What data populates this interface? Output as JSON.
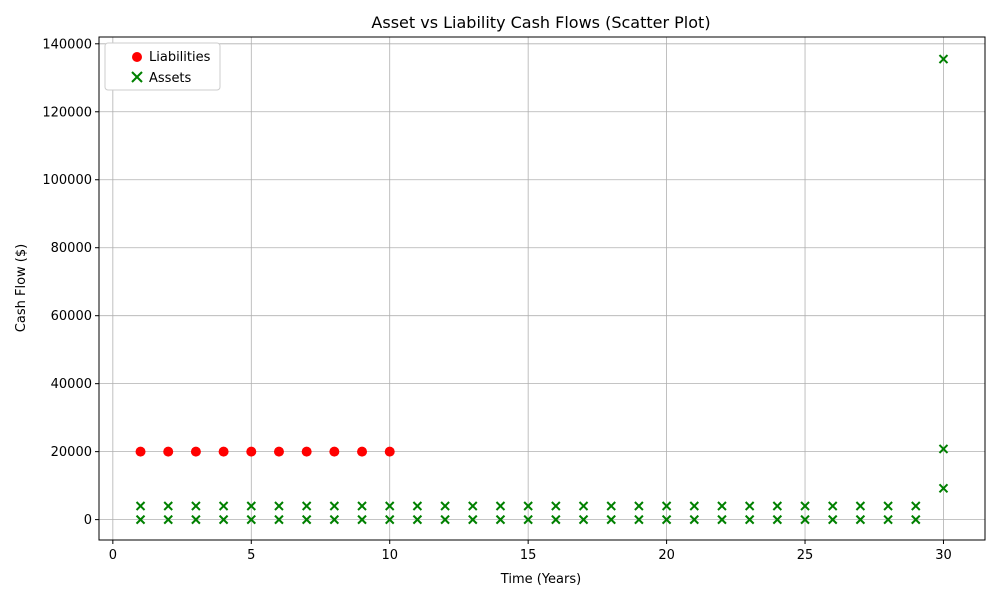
{
  "chart_data": {
    "type": "scatter",
    "title": "Asset vs Liability Cash Flows (Scatter Plot)",
    "xlabel": "Time (Years)",
    "ylabel": "Cash Flow ($)",
    "xlim": [
      -0.5,
      31.5
    ],
    "ylim": [
      -6000,
      142000
    ],
    "xticks": [
      0,
      5,
      10,
      15,
      20,
      25,
      30
    ],
    "yticks": [
      0,
      20000,
      40000,
      60000,
      80000,
      100000,
      120000,
      140000
    ],
    "grid": true,
    "legend_position": "top-left",
    "series": [
      {
        "name": "Liabilities",
        "marker": "circle",
        "color": "#ff0000",
        "points": [
          [
            1,
            20000
          ],
          [
            2,
            20000
          ],
          [
            3,
            20000
          ],
          [
            4,
            20000
          ],
          [
            5,
            20000
          ],
          [
            6,
            20000
          ],
          [
            7,
            20000
          ],
          [
            8,
            20000
          ],
          [
            9,
            20000
          ],
          [
            10,
            20000
          ]
        ]
      },
      {
        "name": "Assets",
        "marker": "x",
        "color": "#008000",
        "points": [
          [
            1,
            4000
          ],
          [
            1,
            0
          ],
          [
            2,
            4000
          ],
          [
            2,
            0
          ],
          [
            3,
            4000
          ],
          [
            3,
            0
          ],
          [
            4,
            4000
          ],
          [
            4,
            0
          ],
          [
            5,
            4000
          ],
          [
            5,
            0
          ],
          [
            6,
            4000
          ],
          [
            6,
            0
          ],
          [
            7,
            4000
          ],
          [
            7,
            0
          ],
          [
            8,
            4000
          ],
          [
            8,
            0
          ],
          [
            9,
            4000
          ],
          [
            9,
            0
          ],
          [
            10,
            4000
          ],
          [
            10,
            0
          ],
          [
            11,
            4000
          ],
          [
            11,
            0
          ],
          [
            12,
            4000
          ],
          [
            12,
            0
          ],
          [
            13,
            4000
          ],
          [
            13,
            0
          ],
          [
            14,
            4000
          ],
          [
            14,
            0
          ],
          [
            15,
            4000
          ],
          [
            15,
            0
          ],
          [
            16,
            4000
          ],
          [
            16,
            0
          ],
          [
            17,
            4000
          ],
          [
            17,
            0
          ],
          [
            18,
            4000
          ],
          [
            18,
            0
          ],
          [
            19,
            4000
          ],
          [
            19,
            0
          ],
          [
            20,
            4000
          ],
          [
            20,
            0
          ],
          [
            21,
            4000
          ],
          [
            21,
            0
          ],
          [
            22,
            4000
          ],
          [
            22,
            0
          ],
          [
            23,
            4000
          ],
          [
            23,
            0
          ],
          [
            24,
            4000
          ],
          [
            24,
            0
          ],
          [
            25,
            4000
          ],
          [
            25,
            0
          ],
          [
            26,
            4000
          ],
          [
            26,
            0
          ],
          [
            27,
            4000
          ],
          [
            27,
            0
          ],
          [
            28,
            4000
          ],
          [
            28,
            0
          ],
          [
            29,
            4000
          ],
          [
            29,
            0
          ],
          [
            30,
            135500
          ],
          [
            30,
            20800
          ],
          [
            30,
            9200
          ]
        ]
      }
    ]
  }
}
